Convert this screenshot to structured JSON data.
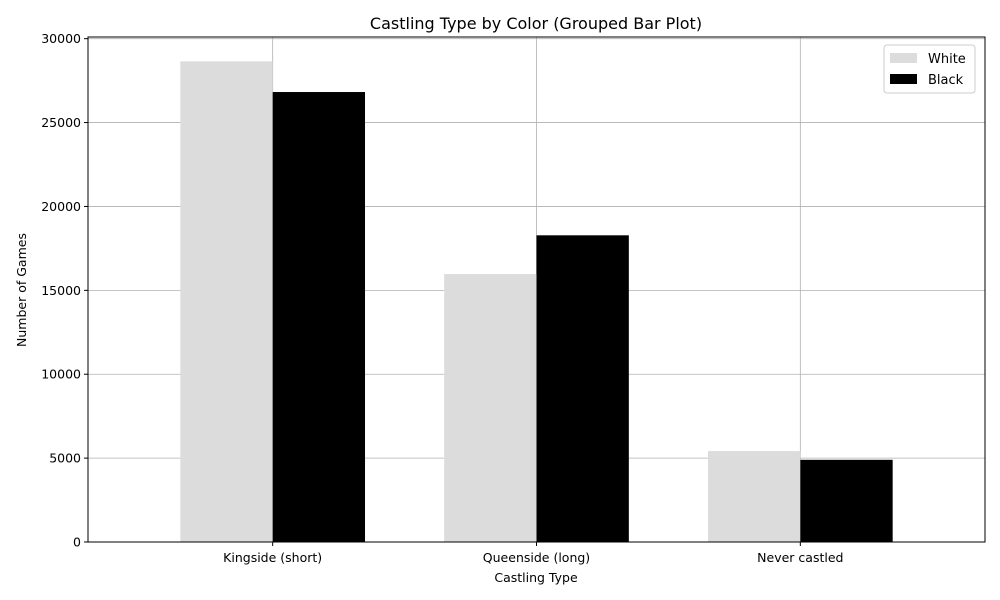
{
  "chart_data": {
    "type": "bar",
    "title": "Castling Type by Color (Grouped Bar Plot)",
    "xlabel": "Castling Type",
    "ylabel": "Number of Games",
    "categories": [
      "Kingside (short)",
      "Queenside (long)",
      "Never castled"
    ],
    "series": [
      {
        "name": "White",
        "color": "#dcdcdc",
        "values": [
          28650,
          15970,
          5420
        ]
      },
      {
        "name": "Black",
        "color": "#000000",
        "values": [
          26820,
          18280,
          4900
        ]
      }
    ],
    "ylim": [
      0,
      30100
    ],
    "yticks": [
      0,
      5000,
      10000,
      15000,
      20000,
      25000,
      30000
    ],
    "grid": true,
    "legend": "top-right"
  }
}
